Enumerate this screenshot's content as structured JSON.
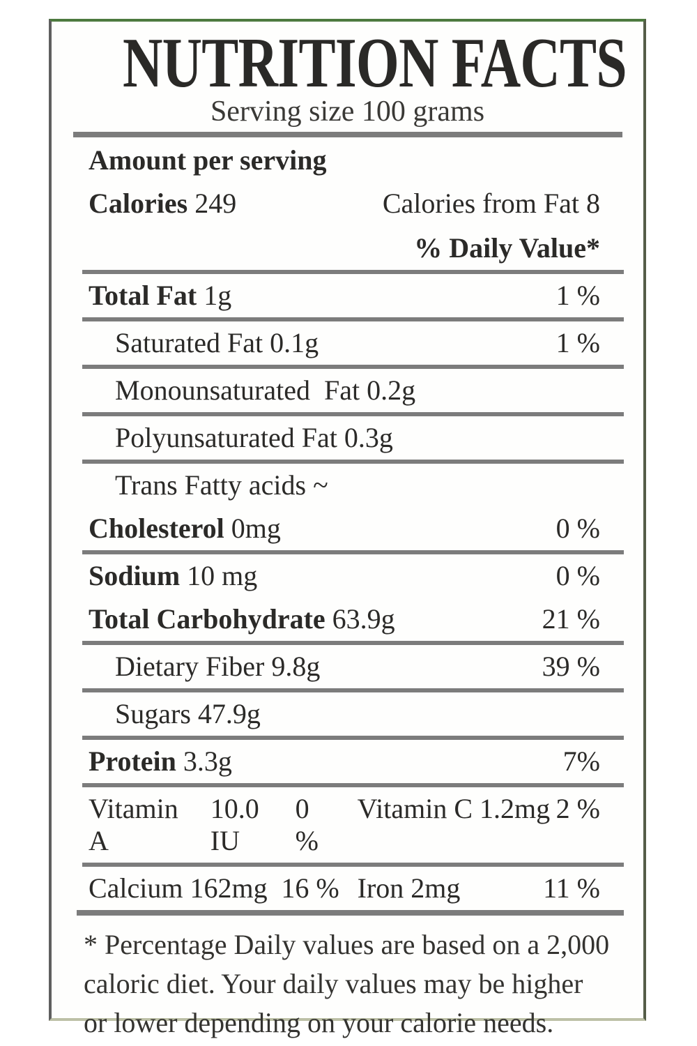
{
  "colors": {
    "text": "#2b2a28",
    "rule_gray": "#7c7c7c",
    "border_top_green": "#4d7a3f",
    "border_left_gray": "#5f5f5f",
    "border_right_olive": "#555d48",
    "border_bottom_pale_olive": "#bcc0a6",
    "background": "#ffffff"
  },
  "header": {
    "title": "NUTRITION FACTS",
    "serving_size": "Serving size 100 grams",
    "amount_per_serving": "Amount per serving",
    "calories_label": "Calories",
    "calories_value": "249",
    "calories_from_fat": "Calories from Fat 8",
    "daily_value_header": "% Daily Value*"
  },
  "nutrients": [
    {
      "name": "Total Fat",
      "value": "1g",
      "percent": "1 %"
    },
    {
      "name": "Saturated Fat",
      "value": "0.1g",
      "percent": "1 %"
    },
    {
      "name": "Monounsaturated  Fat",
      "value": "0.2g",
      "percent": ""
    },
    {
      "name": "Polyunsaturated Fat",
      "value": "0.3g",
      "percent": ""
    },
    {
      "name": "Trans Fatty acids",
      "value": "~",
      "percent": ""
    },
    {
      "name": "Cholesterol",
      "value": "0mg",
      "percent": "0 %"
    },
    {
      "name": "Sodium",
      "value": "10 mg",
      "percent": "0 %"
    },
    {
      "name": "Total Carbohydrate",
      "value": "63.9g",
      "percent": "21 %"
    },
    {
      "name": "Dietary Fiber",
      "value": "9.8g",
      "percent": "39 %"
    },
    {
      "name": "Sugars",
      "value": "47.9g",
      "percent": ""
    },
    {
      "name": "Protein",
      "value": "3.3g",
      "percent": "7%"
    }
  ],
  "micronutrients": [
    {
      "left_name": "Vitamin A",
      "left_value": "10.0 IU",
      "left_percent": "0 %",
      "right_name": "Vitamin C",
      "right_value": "1.2mg",
      "right_percent": "2 %"
    },
    {
      "left_name": "Calcium",
      "left_value": "162mg",
      "left_percent": "16 %",
      "right_name": "Iron",
      "right_value": "2mg",
      "right_percent": "11 %"
    }
  ],
  "footnote": {
    "line1": "* Percentage Daily values are based on a 2,000",
    "line2": "caloric diet. Your daily values may be higher",
    "line3": "or lower depending on your calorie needs."
  }
}
